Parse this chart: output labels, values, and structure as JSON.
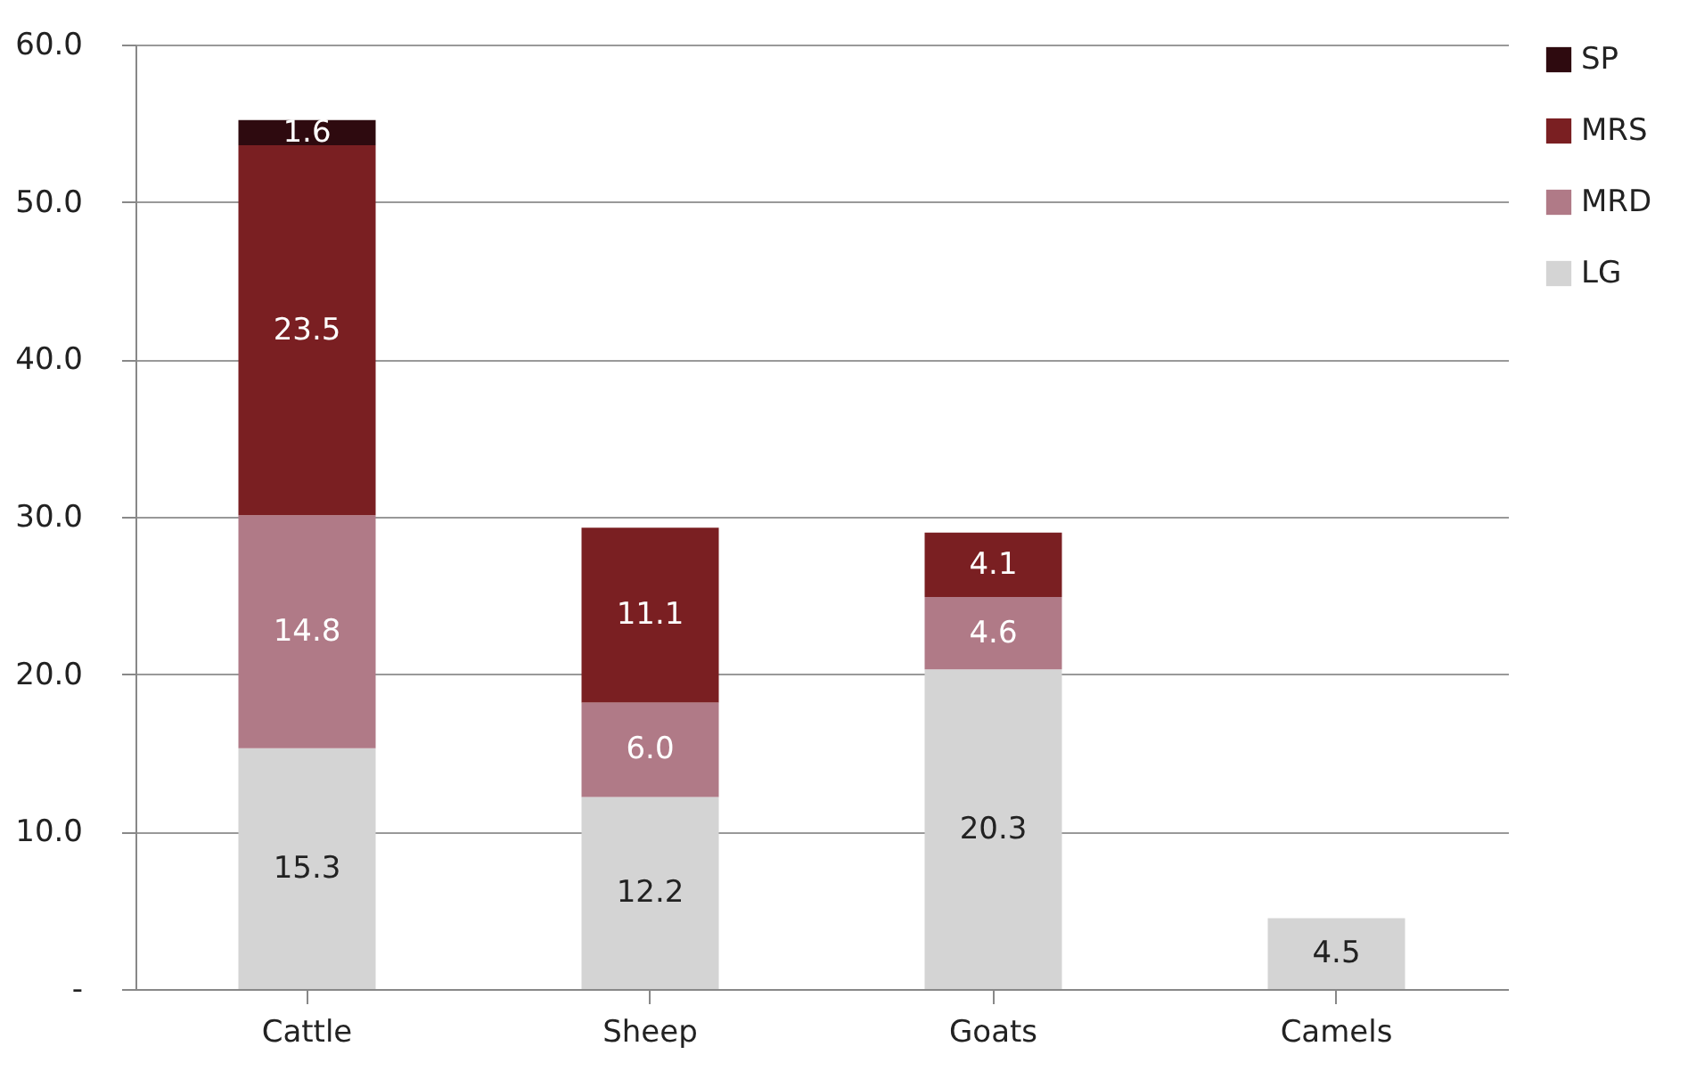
{
  "chart_data": {
    "type": "bar",
    "stacked": true,
    "categories": [
      "Cattle",
      "Sheep",
      "Goats",
      "Camels"
    ],
    "series": [
      {
        "name": "LG",
        "color": "#d4d4d4",
        "values": [
          15.3,
          12.2,
          20.3,
          4.5
        ],
        "value_labels": [
          "15.3",
          "12.2",
          "20.3",
          "4.5"
        ]
      },
      {
        "name": "MRD",
        "color": "#b07a87",
        "values": [
          14.8,
          6.0,
          4.6,
          null
        ],
        "value_labels": [
          "14.8",
          "6.0",
          "4.6",
          null
        ]
      },
      {
        "name": "MRS",
        "color": "#7a1f22",
        "values": [
          23.5,
          11.1,
          4.1,
          null
        ],
        "value_labels": [
          "23.5",
          "11.1",
          "4.1",
          null
        ]
      },
      {
        "name": "SP",
        "color": "#2e0a0f",
        "values": [
          1.6,
          null,
          null,
          null
        ],
        "value_labels": [
          "1.6",
          null,
          null,
          null
        ]
      }
    ],
    "ylim": [
      0,
      60
    ],
    "yticks": [
      {
        "value": 0,
        "label": "-"
      },
      {
        "value": 10,
        "label": "10.0"
      },
      {
        "value": 20,
        "label": "20.0"
      },
      {
        "value": 30,
        "label": "30.0"
      },
      {
        "value": 40,
        "label": "40.0"
      },
      {
        "value": 50,
        "label": "50.0"
      },
      {
        "value": 60,
        "label": "60.0"
      }
    ],
    "grid": "y",
    "legend": "right"
  }
}
